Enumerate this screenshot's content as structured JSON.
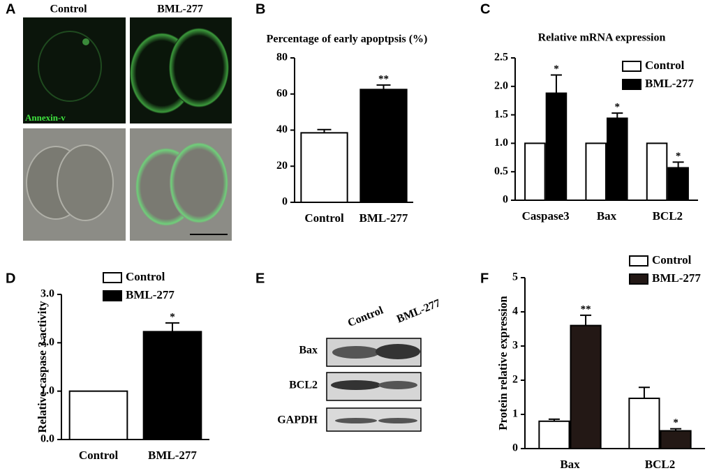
{
  "panel_labels": [
    "A",
    "B",
    "C",
    "D",
    "E",
    "F"
  ],
  "microscopy": {
    "columns": [
      "Control",
      "BML-277"
    ],
    "stain": "Annexin-v"
  },
  "blot": {
    "lanes": [
      "Control",
      "BML-277"
    ],
    "rows": [
      "Bax",
      "BCL2",
      "GAPDH"
    ]
  },
  "chart_data": [
    {
      "type": "bar",
      "title": "Percentage of early apoptpsis (%)",
      "categories": [
        "Control",
        "BML-277"
      ],
      "values": [
        38.5,
        62.5
      ],
      "errors": [
        1.8,
        2.5
      ],
      "colors": [
        "#ffffff",
        "#000000"
      ],
      "significance": [
        null,
        "**"
      ],
      "ylim": [
        0,
        80
      ],
      "yticks": [
        0,
        20,
        40,
        60,
        80
      ]
    },
    {
      "type": "grouped-bar",
      "title": "Relative mRNA expression",
      "categories": [
        "Caspase3",
        "Bax",
        "BCL2"
      ],
      "series": [
        {
          "name": "Control",
          "color": "#ffffff",
          "values": [
            1.0,
            1.0,
            1.0
          ]
        },
        {
          "name": "BML-277",
          "color": "#000000",
          "values": [
            1.88,
            1.44,
            0.57
          ],
          "errors": [
            0.32,
            0.09,
            0.1
          ],
          "significance": [
            "*",
            "*",
            "*"
          ]
        }
      ],
      "legend": "upper right",
      "ylim": [
        0,
        2.5
      ],
      "yticks": [
        0,
        0.5,
        {
          "value": 1,
          "label": "1.0"
        },
        1.5,
        {
          "value": 2,
          "label": "2.0"
        },
        2.5
      ]
    },
    {
      "type": "bar",
      "y_label": "Relative caspase 3 activity",
      "categories": [
        "Control",
        "BML-277"
      ],
      "values": [
        1.0,
        2.23
      ],
      "errors": [
        0,
        0.18
      ],
      "colors": [
        "#ffffff",
        "#000000"
      ],
      "significance": [
        null,
        "*"
      ],
      "legend": "upper left",
      "ylim": [
        0,
        3
      ],
      "yticks": [
        {
          "value": 0,
          "label": "0.0"
        },
        {
          "value": 1,
          "label": "1.0"
        },
        {
          "value": 2,
          "label": "2.0"
        },
        {
          "value": 3,
          "label": "3.0"
        }
      ]
    },
    {
      "type": "grouped-bar",
      "y_label": "Protein relative expression",
      "categories": [
        "Bax",
        "BCL2"
      ],
      "series": [
        {
          "name": "Control",
          "color": "#ffffff",
          "values": [
            0.8,
            1.47
          ],
          "errors": [
            0.06,
            0.32
          ]
        },
        {
          "name": "BML-277",
          "color": "#231815",
          "values": [
            3.6,
            0.52
          ],
          "errors": [
            0.3,
            0.06
          ],
          "significance": [
            "**",
            "*"
          ]
        }
      ],
      "legend": "upper right",
      "ylim": [
        0,
        5
      ],
      "yticks": [
        0,
        1,
        2,
        3,
        4,
        5
      ]
    }
  ]
}
